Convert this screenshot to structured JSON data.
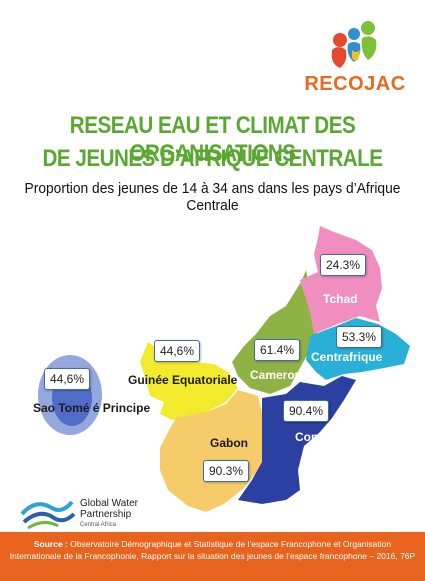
{
  "brand": {
    "name": "RECOJAC",
    "color": "#e66a1f"
  },
  "title_line1": "RESEAU EAU ET CLIMAT DES ORGANISATIONS",
  "title_line2": "DE JEUNES D’AFRIQUE CENTRALE",
  "subtitle": "Proportion des jeunes de 14 à 34 ans dans les pays d’Afrique Centrale",
  "countries": [
    {
      "name": "Tchad",
      "value": "24.3%",
      "color": "#f18ec0"
    },
    {
      "name": "Centrafrique",
      "value": "53.3%",
      "color": "#29b0d9"
    },
    {
      "name": "Cameroun",
      "value": "61.4%",
      "color": "#8fb244"
    },
    {
      "name": "Congo",
      "value": "90.4%",
      "color": "#2b40a0"
    },
    {
      "name": "Gabon",
      "value": "90.3%",
      "color": "#f6cc6b"
    },
    {
      "name": "Guinée Equatoriale",
      "value": "44,6%",
      "color": "#f2ea2c"
    },
    {
      "name": "Sao Tomé é Principe",
      "value": "44,6%",
      "color": "#3d5ec2"
    }
  ],
  "partner": {
    "line1": "Global Water",
    "line2": "Partnership",
    "line3": "Central Africa"
  },
  "source": {
    "label": "Source :",
    "text1": "Observatoire Démographique et Statistique de l’espace Francophone et Organisation",
    "text2": "Internationale de la Francophonie, Rapport sur la situation des jeunes de l’espace francophone – 2016, 76P"
  }
}
